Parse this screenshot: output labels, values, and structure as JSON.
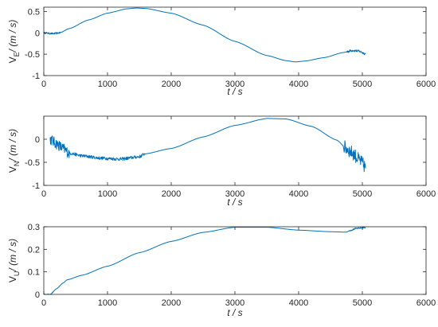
{
  "chart_data": [
    {
      "type": "line",
      "xlabel": "t / s",
      "ylabel": "V_E / (m / s)",
      "ylabel_parts": {
        "main": "V",
        "sub": "E",
        "rest": "/ (m / s)"
      },
      "xlim": [
        0,
        6000
      ],
      "ylim": [
        -1,
        0.6
      ],
      "xticks": [
        0,
        1000,
        2000,
        3000,
        4000,
        5000,
        6000
      ],
      "yticks": [
        -1,
        -0.5,
        0,
        0.5
      ],
      "xtick_labels": [
        "0",
        "1000",
        "2000",
        "3000",
        "4000",
        "5000",
        "6000"
      ],
      "ytick_labels": [
        "-1",
        "-0.5",
        "0",
        "0.5"
      ],
      "series": [
        {
          "color": "#0072BD",
          "x": [
            0,
            150,
            250,
            400,
            700,
            1000,
            1300,
            1450,
            1600,
            2000,
            2500,
            3000,
            3500,
            3800,
            3950,
            4100,
            4400,
            4700,
            4850,
            4950,
            5050
          ],
          "y": [
            0,
            -0.02,
            0.0,
            0.1,
            0.3,
            0.46,
            0.56,
            0.58,
            0.57,
            0.46,
            0.18,
            -0.2,
            -0.53,
            -0.65,
            -0.68,
            -0.66,
            -0.58,
            -0.46,
            -0.41,
            -0.43,
            -0.49
          ],
          "noise": [
            [
              0,
              280,
              0.02
            ],
            [
              4750,
              5100,
              0.03
            ]
          ]
        }
      ]
    },
    {
      "type": "line",
      "xlabel": "t / s",
      "ylabel": "V_N / (m / s)",
      "ylabel_parts": {
        "main": "V",
        "sub": "N",
        "rest": "/ (m / s)"
      },
      "xlim": [
        0,
        6000
      ],
      "ylim": [
        -1,
        0.5
      ],
      "xticks": [
        0,
        1000,
        2000,
        3000,
        4000,
        5000,
        6000
      ],
      "yticks": [
        -1,
        -0.5,
        0
      ],
      "xtick_labels": [
        "0",
        "1000",
        "2000",
        "3000",
        "4000",
        "5000",
        "6000"
      ],
      "ytick_labels": [
        "-1",
        "-0.5",
        "0"
      ],
      "series": [
        {
          "color": "#0072BD",
          "x": [
            100,
            200,
            300,
            400,
            600,
            900,
            1200,
            1500,
            1580,
            2000,
            2500,
            3000,
            3500,
            3800,
            4200,
            4600,
            4750,
            4850,
            4950,
            5050
          ],
          "y": [
            0.0,
            -0.1,
            -0.2,
            -0.3,
            -0.36,
            -0.41,
            -0.43,
            -0.38,
            -0.32,
            -0.2,
            0.05,
            0.3,
            0.45,
            0.44,
            0.28,
            -0.02,
            -0.2,
            -0.3,
            -0.45,
            -0.6
          ],
          "noise": [
            [
              100,
              400,
              0.12
            ],
            [
              400,
              1580,
              0.035
            ],
            [
              4700,
              5100,
              0.15
            ]
          ]
        }
      ]
    },
    {
      "type": "line",
      "xlabel": "t / s",
      "ylabel": "V_U / (m / s)",
      "ylabel_parts": {
        "main": "V",
        "sub": "U",
        "rest": "/ (m / s)"
      },
      "xlim": [
        0,
        6000
      ],
      "ylim": [
        0,
        0.3
      ],
      "xticks": [
        0,
        1000,
        2000,
        3000,
        4000,
        5000,
        6000
      ],
      "yticks": [
        0,
        0.1,
        0.2,
        0.3
      ],
      "xtick_labels": [
        "0",
        "1000",
        "2000",
        "3000",
        "4000",
        "5000",
        "6000"
      ],
      "ytick_labels": [
        "0",
        "0.1",
        "0.2",
        "0.3"
      ],
      "series": [
        {
          "color": "#0072BD",
          "x": [
            0,
            100,
            200,
            300,
            370,
            600,
            1000,
            1500,
            2000,
            2500,
            3000,
            3500,
            4000,
            4500,
            4750,
            4800,
            4900,
            5050
          ],
          "y": [
            0,
            0.0,
            0.025,
            0.05,
            0.065,
            0.085,
            0.125,
            0.185,
            0.235,
            0.275,
            0.298,
            0.298,
            0.285,
            0.278,
            0.276,
            0.283,
            0.292,
            0.297
          ],
          "noise": [
            [
              0,
              150,
              0.002
            ],
            [
              4800,
              5100,
              0.003
            ]
          ]
        }
      ]
    }
  ]
}
